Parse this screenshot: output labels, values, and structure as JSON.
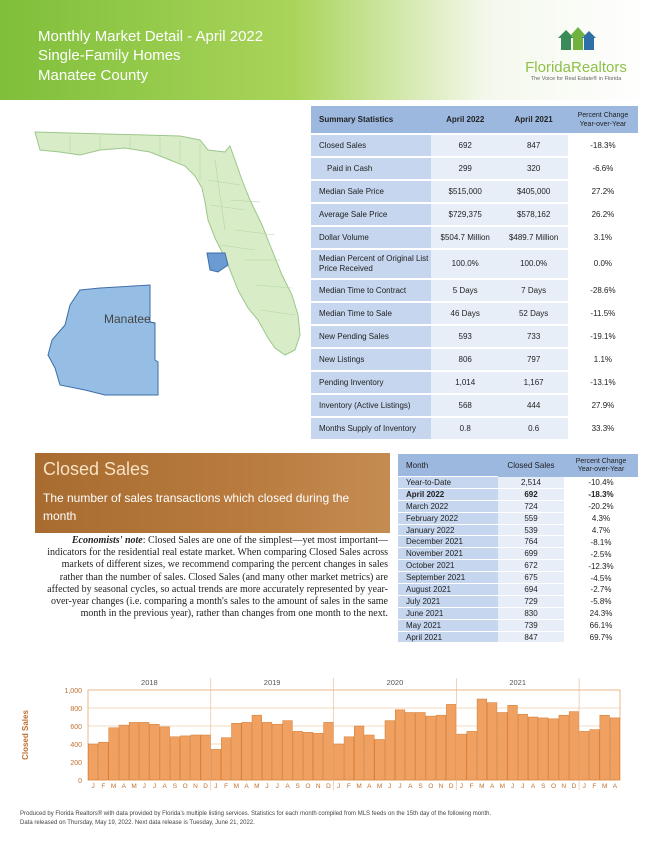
{
  "header": {
    "title_line1": "Monthly Market Detail - April 2022",
    "title_line2": "Single-Family Homes",
    "title_line3": "Manatee County",
    "logo_brand": "FloridaRealtors",
    "logo_tagline": "The Voice for Real Estate® in Florida",
    "logo_icon": "houses-icon"
  },
  "map": {
    "county_label": "Manatee"
  },
  "summary": {
    "headers": [
      "Summary Statistics",
      "April 2022",
      "April 2021",
      "Percent Change",
      "Year-over-Year"
    ],
    "rows": [
      {
        "label": "Closed Sales",
        "a": "692",
        "b": "847",
        "pct": "-18.3%"
      },
      {
        "label": "Paid in Cash",
        "a": "299",
        "b": "320",
        "pct": "-6.6%"
      },
      {
        "label": "Median Sale Price",
        "a": "$515,000",
        "b": "$405,000",
        "pct": "27.2%"
      },
      {
        "label": "Average Sale Price",
        "a": "$729,375",
        "b": "$578,162",
        "pct": "26.2%"
      },
      {
        "label": "Dollar Volume",
        "a": "$504.7 Million",
        "b": "$489.7 Million",
        "pct": "3.1%"
      },
      {
        "label": "Median Percent of Original List Price Received",
        "a": "100.0%",
        "b": "100.0%",
        "pct": "0.0%"
      },
      {
        "label": "Median Time to Contract",
        "a": "5 Days",
        "b": "7 Days",
        "pct": "-28.6%"
      },
      {
        "label": "Median Time to Sale",
        "a": "46 Days",
        "b": "52 Days",
        "pct": "-11.5%"
      },
      {
        "label": "New Pending Sales",
        "a": "593",
        "b": "733",
        "pct": "-19.1%"
      },
      {
        "label": "New Listings",
        "a": "806",
        "b": "797",
        "pct": "1.1%"
      },
      {
        "label": "Pending Inventory",
        "a": "1,014",
        "b": "1,167",
        "pct": "-13.1%"
      },
      {
        "label": "Inventory (Active Listings)",
        "a": "568",
        "b": "444",
        "pct": "27.9%"
      },
      {
        "label": "Months Supply of Inventory",
        "a": "0.8",
        "b": "0.6",
        "pct": "33.3%"
      }
    ]
  },
  "closed": {
    "title": "Closed Sales",
    "subtitle": "The number of sales transactions which closed during the month",
    "note_label": "Economists' note",
    "note_text": ": Closed Sales are one of the simplest—yet most important—indicators for the residential real estate market. When comparing Closed Sales across markets of different sizes, we recommend comparing the percent changes in sales rather than the number of sales. Closed Sales (and many other market metrics) are affected by seasonal cycles, so actual trends are more accurately represented by year-over-year changes (i.e. comparing a month's sales to the amount of sales in the same month in the previous year), rather than changes from one month to the next."
  },
  "monthly": {
    "headers": [
      "Month",
      "Closed Sales",
      "Percent Change",
      "Year-over-Year"
    ],
    "rows": [
      {
        "m": "Year-to-Date",
        "v": "2,514",
        "p": "-10.4%"
      },
      {
        "m": "April 2022",
        "v": "692",
        "p": "-18.3%",
        "bold": true
      },
      {
        "m": "March 2022",
        "v": "724",
        "p": "-20.2%"
      },
      {
        "m": "February 2022",
        "v": "559",
        "p": "4.3%"
      },
      {
        "m": "January 2022",
        "v": "539",
        "p": "4.7%"
      },
      {
        "m": "December 2021",
        "v": "764",
        "p": "-8.1%"
      },
      {
        "m": "November 2021",
        "v": "699",
        "p": "-2.5%"
      },
      {
        "m": "October 2021",
        "v": "672",
        "p": "-12.3%"
      },
      {
        "m": "September 2021",
        "v": "675",
        "p": "-4.5%"
      },
      {
        "m": "August 2021",
        "v": "694",
        "p": "-2.7%"
      },
      {
        "m": "July 2021",
        "v": "729",
        "p": "-5.8%"
      },
      {
        "m": "June 2021",
        "v": "830",
        "p": "24.3%"
      },
      {
        "m": "May 2021",
        "v": "739",
        "p": "66.1%"
      },
      {
        "m": "April 2021",
        "v": "847",
        "p": "69.7%"
      }
    ]
  },
  "chart_data": {
    "type": "bar",
    "ylabel": "Closed Sales",
    "ylim": [
      0,
      1000
    ],
    "yticks": [
      "0",
      "200",
      "400",
      "600",
      "800",
      "1,000"
    ],
    "years": [
      "2018",
      "2019",
      "2020",
      "2021"
    ],
    "month_letters": [
      "J",
      "F",
      "M",
      "A",
      "M",
      "J",
      "J",
      "A",
      "S",
      "O",
      "N",
      "D",
      "J",
      "F",
      "M",
      "A",
      "M",
      "J",
      "J",
      "A",
      "S",
      "O",
      "N",
      "D",
      "J",
      "F",
      "M",
      "A",
      "M",
      "J",
      "J",
      "A",
      "S",
      "O",
      "N",
      "D",
      "J",
      "F",
      "M",
      "A",
      "M",
      "J",
      "J",
      "A",
      "S",
      "O",
      "N",
      "D",
      "J",
      "F",
      "M",
      "A"
    ],
    "values": [
      400,
      420,
      580,
      610,
      640,
      640,
      620,
      590,
      480,
      490,
      500,
      500,
      340,
      470,
      630,
      640,
      720,
      640,
      620,
      660,
      540,
      530,
      520,
      640,
      400,
      480,
      600,
      500,
      450,
      660,
      780,
      750,
      750,
      710,
      720,
      840,
      510,
      540,
      900,
      860,
      750,
      830,
      730,
      700,
      690,
      680,
      720,
      760,
      540,
      560,
      720,
      690
    ],
    "colors": {
      "bar": "#f0a060",
      "bar_stroke": "#d07a30",
      "grid": "#e8b78a",
      "axis_text": "#c07030"
    }
  },
  "footer": {
    "line1": "Produced by Florida Realtors® with data provided by Florida's multiple listing services. Statistics for each month compiled from MLS feeds on the 15th day of the following month.",
    "line2": "Data released on Thursday, May 19, 2022. Next data release is Tuesday, June 21, 2022."
  }
}
